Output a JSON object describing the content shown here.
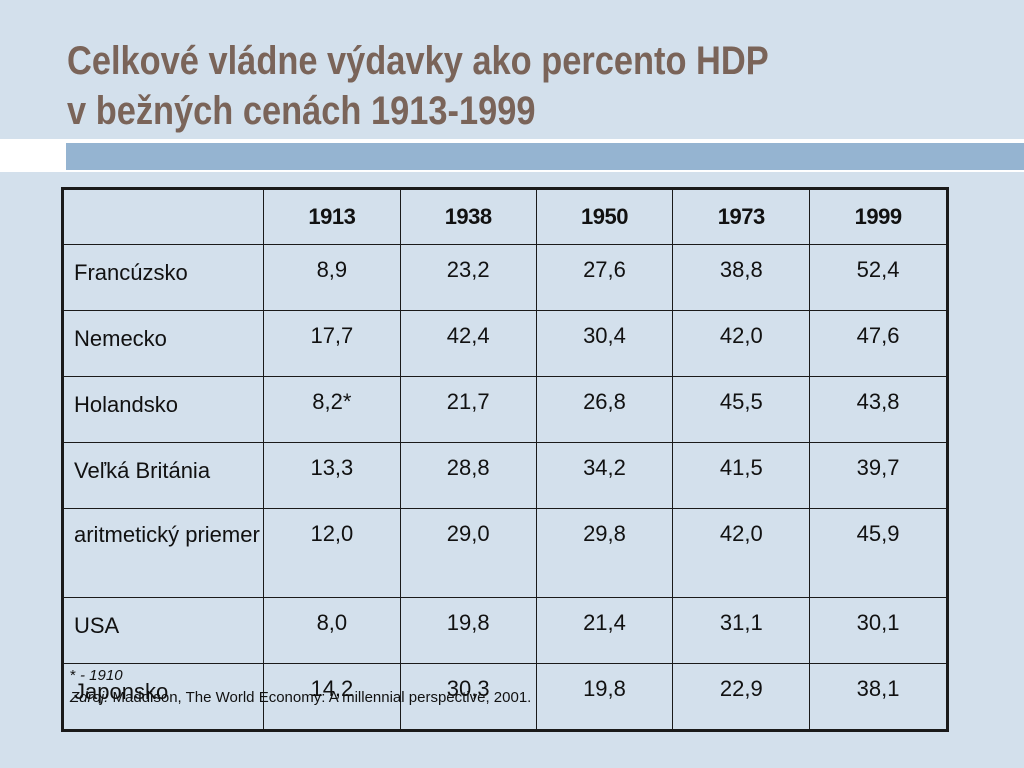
{
  "title": {
    "line1": "Celkové vládne výdavky ako percento HDP",
    "line2": "v bežných cenách 1913-1999"
  },
  "table": {
    "corner": "",
    "columns": [
      "1913",
      "1938",
      "1950",
      "1973",
      "1999"
    ],
    "rows": [
      {
        "label": "Francúzsko",
        "values": [
          "8,9",
          "23,2",
          "27,6",
          "38,8",
          "52,4"
        ]
      },
      {
        "label": "Nemecko",
        "values": [
          "17,7",
          "42,4",
          "30,4",
          "42,0",
          "47,6"
        ]
      },
      {
        "label": "Holandsko",
        "values": [
          "8,2*",
          "21,7",
          "26,8",
          "45,5",
          "43,8"
        ]
      },
      {
        "label": "Veľká Británia",
        "values": [
          "13,3",
          "28,8",
          "34,2",
          "41,5",
          "39,7"
        ]
      },
      {
        "label": "aritmetický priemer",
        "values": [
          "12,0",
          "29,0",
          "29,8",
          "42,0",
          "45,9"
        ]
      },
      {
        "label": "USA",
        "values": [
          "8,0",
          "19,8",
          "21,4",
          "31,1",
          "30,1"
        ]
      },
      {
        "label": "Japonsko",
        "values": [
          "14,2",
          "30,3",
          "19,8",
          "22,9",
          "38,1"
        ]
      }
    ]
  },
  "footnote": {
    "asterisk_marker": "*",
    "asterisk_text": " - 1910",
    "source_label": "Zdroj:",
    "source_text": " Maddison, The World Economy: A millennial perspective, 2001."
  },
  "colors": {
    "background": "#d3e0ec",
    "title": "#7a6459",
    "accent_band": "#95b4d1"
  }
}
